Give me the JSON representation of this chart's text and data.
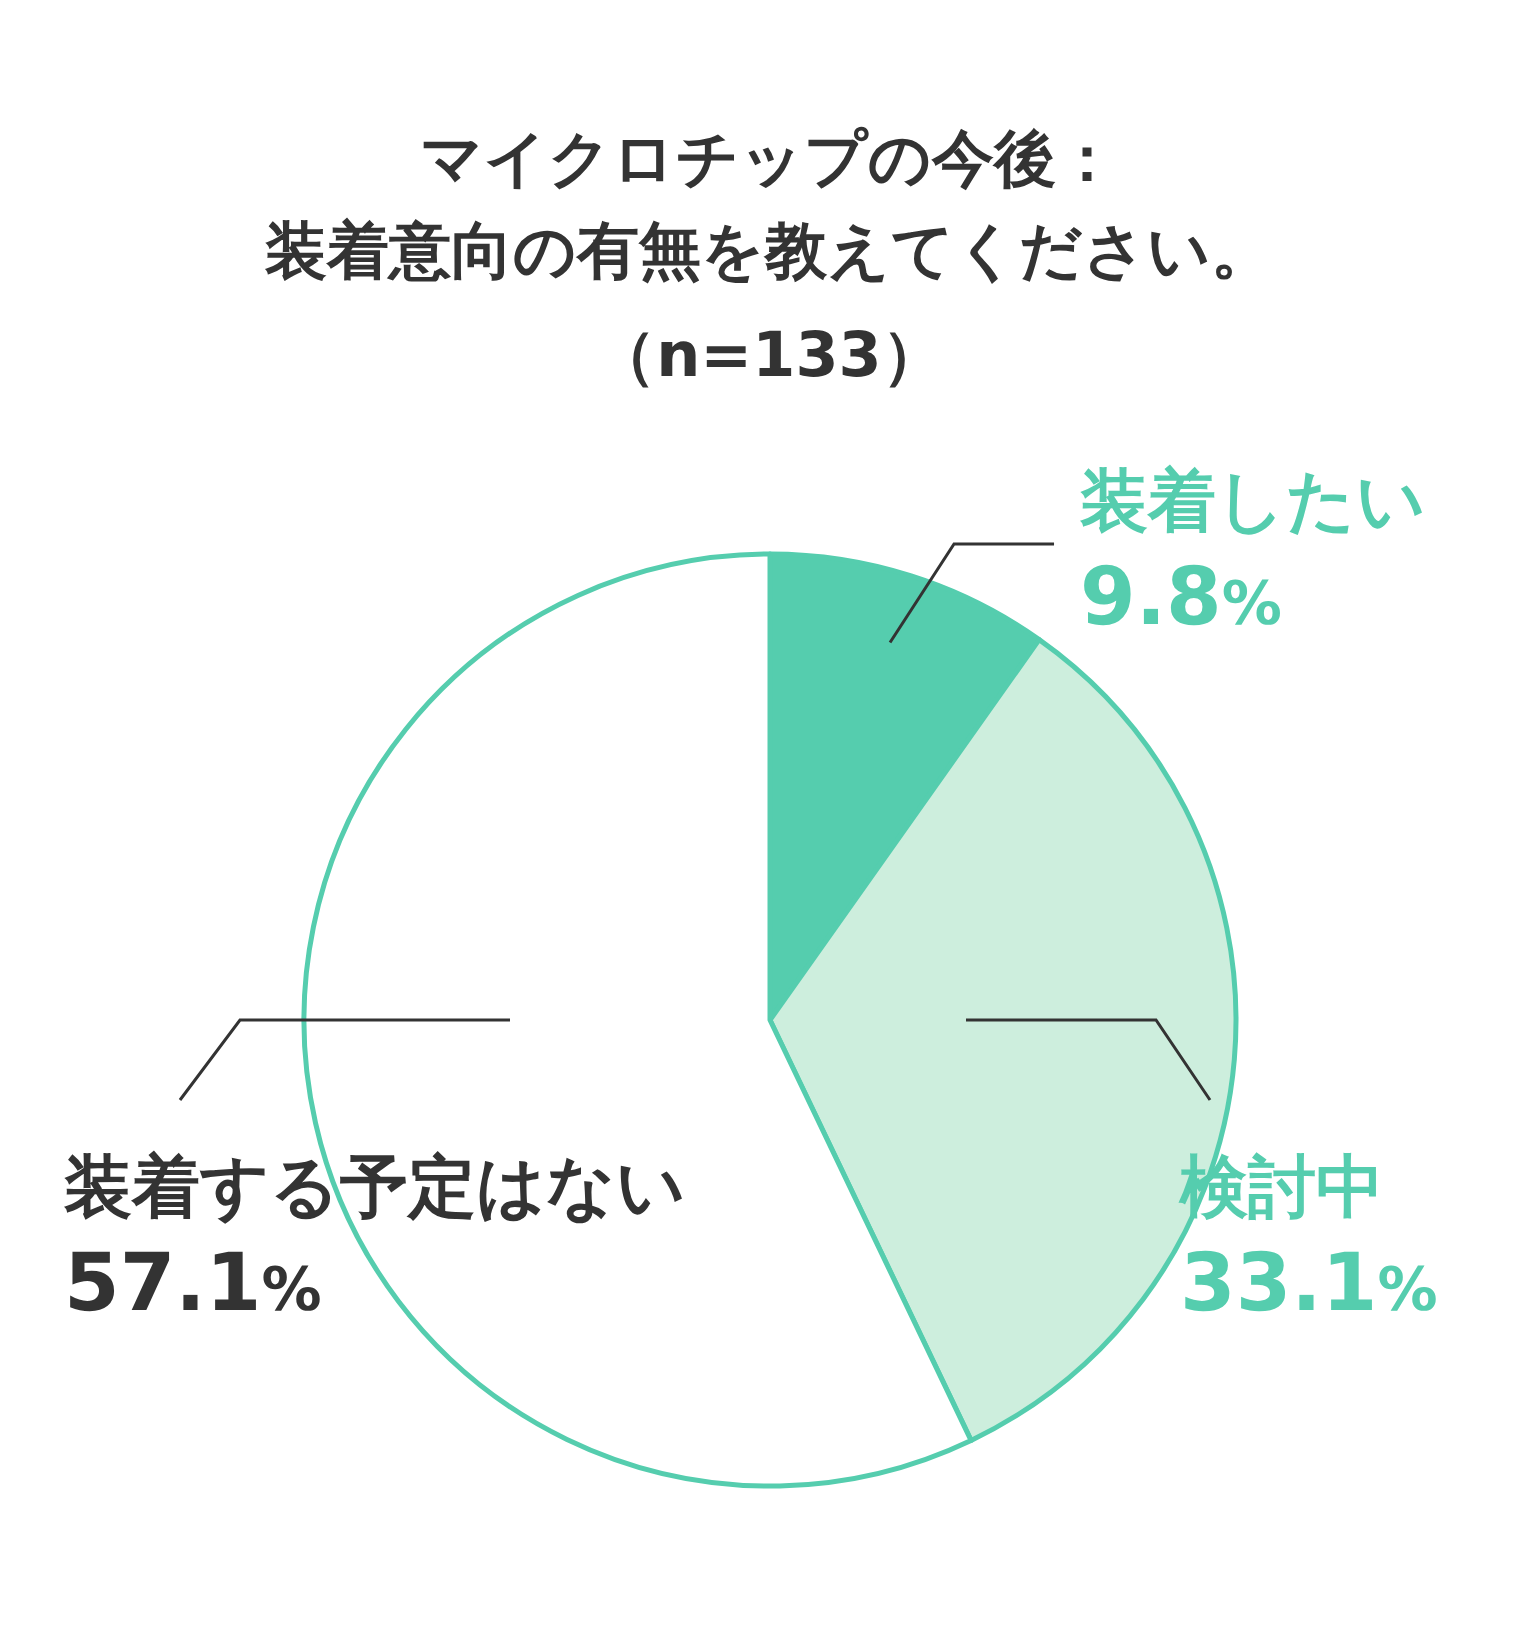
{
  "chart_data": {
    "type": "pie",
    "title": "マイクロチップの今後：",
    "subtitle": "装着意向の有無を教えてください。",
    "annotations": [
      "（n=133）"
    ],
    "categories": [
      "装着したい",
      "検討中",
      "装着する予定はない"
    ],
    "values": [
      9.8,
      33.1,
      57.1
    ],
    "colors": [
      "#55cdae",
      "#cdeedd",
      "#ffffff"
    ],
    "value_labels": [
      "9.8%",
      "33.1%",
      "57.1%"
    ]
  }
}
